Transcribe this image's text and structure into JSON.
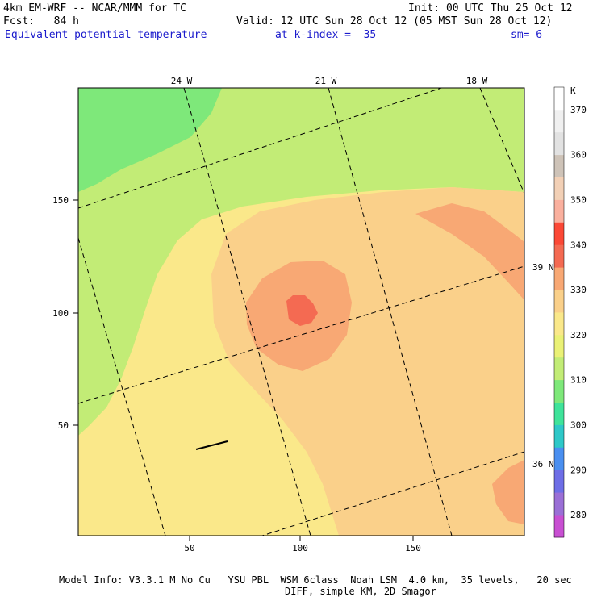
{
  "header": {
    "model": "4km EM-WRF -- NCAR/MMM for TC",
    "init": "Init: 00 UTC Thu 25 Oct 12",
    "fcst": "Fcst:   84 h",
    "valid": "Valid: 12 UTC Sun 28 Oct 12 (05 MST Sun 28 Oct 12)",
    "field": "Equivalent potential temperature",
    "level": "at k-index =  35",
    "smoothing": "sm= 6"
  },
  "footer": {
    "line1": "Model Info: V3.3.1 M No Cu   YSU PBL  WSM 6class  Noah LSM  4.0 km,  35 levels,   20 sec",
    "line2": "DIFF, simple KM, 2D Smagor"
  },
  "colors": {
    "band_280": "#c84fd2",
    "band_290": "#9a6fd6",
    "band_300": "#6e6ee6",
    "band_310": "#4a8ff0",
    "band_320": "#2ec8c8",
    "band_330": "#3fe39a",
    "band_340": "#7ee87a",
    "band_350": "#c2ec76",
    "band_360": "#eaf176",
    "band_370": "#fae88a",
    "band_380": "#fad08a",
    "band_390": "#f8a874",
    "band_400": "#f46a52",
    "band_410": "#fb4836",
    "band_420": "#fab09e",
    "band_430": "#f2d0b6",
    "band_440": "#cec3b8",
    "band_450": "#e2e2e2",
    "band_460": "#f0f0f0",
    "band_470": "#ffffff"
  },
  "chart_data": {
    "type": "heatmap",
    "title": "Equivalent potential temperature",
    "unit": "K",
    "grid_x_ticks": [
      "50",
      "100",
      "150"
    ],
    "grid_y_ticks": [
      "50",
      "100",
      "150"
    ],
    "longitude_labels": [
      "24 W",
      "21 W",
      "18 W"
    ],
    "latitude_labels": [
      "39 N",
      "36 N"
    ],
    "colorbar_ticks": [
      "280",
      "290",
      "300",
      "310",
      "320",
      "330",
      "340",
      "350",
      "360",
      "370"
    ],
    "colorbar_unit": "K",
    "contour_levels": [
      320,
      325,
      330,
      335,
      340
    ],
    "max_region_value": 340
  }
}
